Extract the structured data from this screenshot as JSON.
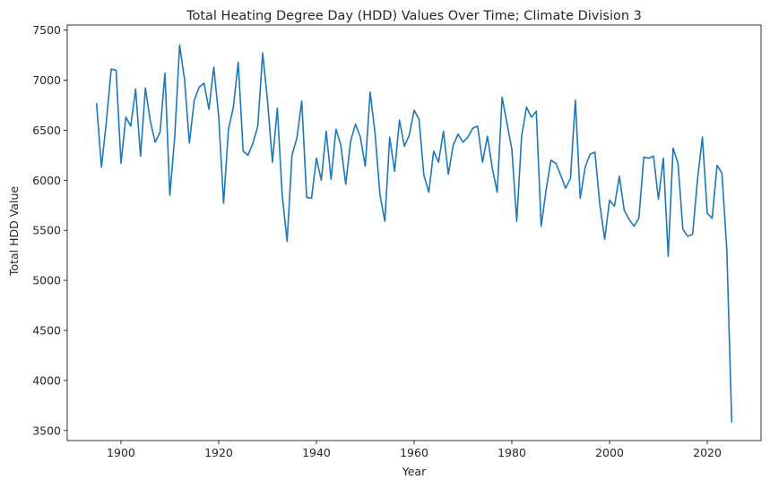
{
  "chart_data": {
    "type": "line",
    "title": "Total Heating Degree Day (HDD) Values Over Time; Climate Division 3",
    "xlabel": "Year",
    "ylabel": "Total HDD Value",
    "xlim": [
      1889,
      2031
    ],
    "ylim": [
      3400,
      7550
    ],
    "xticks": [
      1900,
      1920,
      1940,
      1960,
      1980,
      2000,
      2020
    ],
    "yticks": [
      3500,
      4000,
      4500,
      5000,
      5500,
      6000,
      6500,
      7000,
      7500
    ],
    "grid": false,
    "legend": "none",
    "color": "#1f77b4",
    "series": [
      {
        "x": [
          1895,
          1896,
          1897,
          1898,
          1899,
          1900,
          1901,
          1902,
          1903,
          1904,
          1905,
          1906,
          1907,
          1908,
          1909,
          1910,
          1911,
          1912,
          1913,
          1914,
          1915,
          1916,
          1917,
          1918,
          1919,
          1920,
          1921,
          1922,
          1923,
          1924,
          1925,
          1926,
          1927,
          1928,
          1929,
          1930,
          1931,
          1932,
          1933,
          1934,
          1935,
          1936,
          1937,
          1938,
          1939,
          1940,
          1941,
          1942,
          1943,
          1944,
          1945,
          1946,
          1947,
          1948,
          1949,
          1950,
          1951,
          1952,
          1953,
          1954,
          1955,
          1956,
          1957,
          1958,
          1959,
          1960,
          1961,
          1962,
          1963,
          1964,
          1965,
          1966,
          1967,
          1968,
          1969,
          1970,
          1971,
          1972,
          1973,
          1974,
          1975,
          1976,
          1977,
          1978,
          1979,
          1980,
          1981,
          1982,
          1983,
          1984,
          1985,
          1986,
          1987,
          1988,
          1989,
          1990,
          1991,
          1992,
          1993,
          1994,
          1995,
          1996,
          1997,
          1998,
          1999,
          2000,
          2001,
          2002,
          2003,
          2004,
          2005,
          2006,
          2007,
          2008,
          2009,
          2010,
          2011,
          2012,
          2013,
          2014,
          2015,
          2016,
          2017,
          2018,
          2019,
          2020,
          2021,
          2022,
          2023,
          2024,
          2025
        ],
        "values": [
          6770,
          6130,
          6580,
          7110,
          7100,
          6170,
          6630,
          6540,
          6910,
          6240,
          6920,
          6590,
          6380,
          6480,
          7070,
          5850,
          6430,
          7350,
          7010,
          6370,
          6800,
          6930,
          6970,
          6710,
          7130,
          6640,
          5770,
          6510,
          6730,
          7180,
          6290,
          6250,
          6370,
          6540,
          7270,
          6790,
          6180,
          6720,
          5850,
          5390,
          6250,
          6420,
          6790,
          5830,
          5820,
          6220,
          6000,
          6490,
          6010,
          6510,
          6350,
          5960,
          6390,
          6560,
          6430,
          6140,
          6880,
          6470,
          5860,
          5590,
          6430,
          6090,
          6600,
          6340,
          6450,
          6700,
          6610,
          6050,
          5880,
          6290,
          6180,
          6490,
          6060,
          6350,
          6460,
          6380,
          6430,
          6520,
          6540,
          6180,
          6440,
          6120,
          5880,
          6830,
          6570,
          6310,
          5590,
          6440,
          6730,
          6630,
          6690,
          5540,
          5900,
          6200,
          6170,
          6050,
          5920,
          6020,
          6800,
          5820,
          6130,
          6260,
          6280,
          5760,
          5410,
          5800,
          5740,
          6040,
          5700,
          5610,
          5540,
          5620,
          6230,
          6220,
          6240,
          5810,
          6220,
          5240,
          6320,
          6170,
          5510,
          5440,
          5460,
          6010,
          6430,
          5670,
          5620,
          6150,
          6070,
          5300,
          3580
        ]
      }
    ]
  }
}
